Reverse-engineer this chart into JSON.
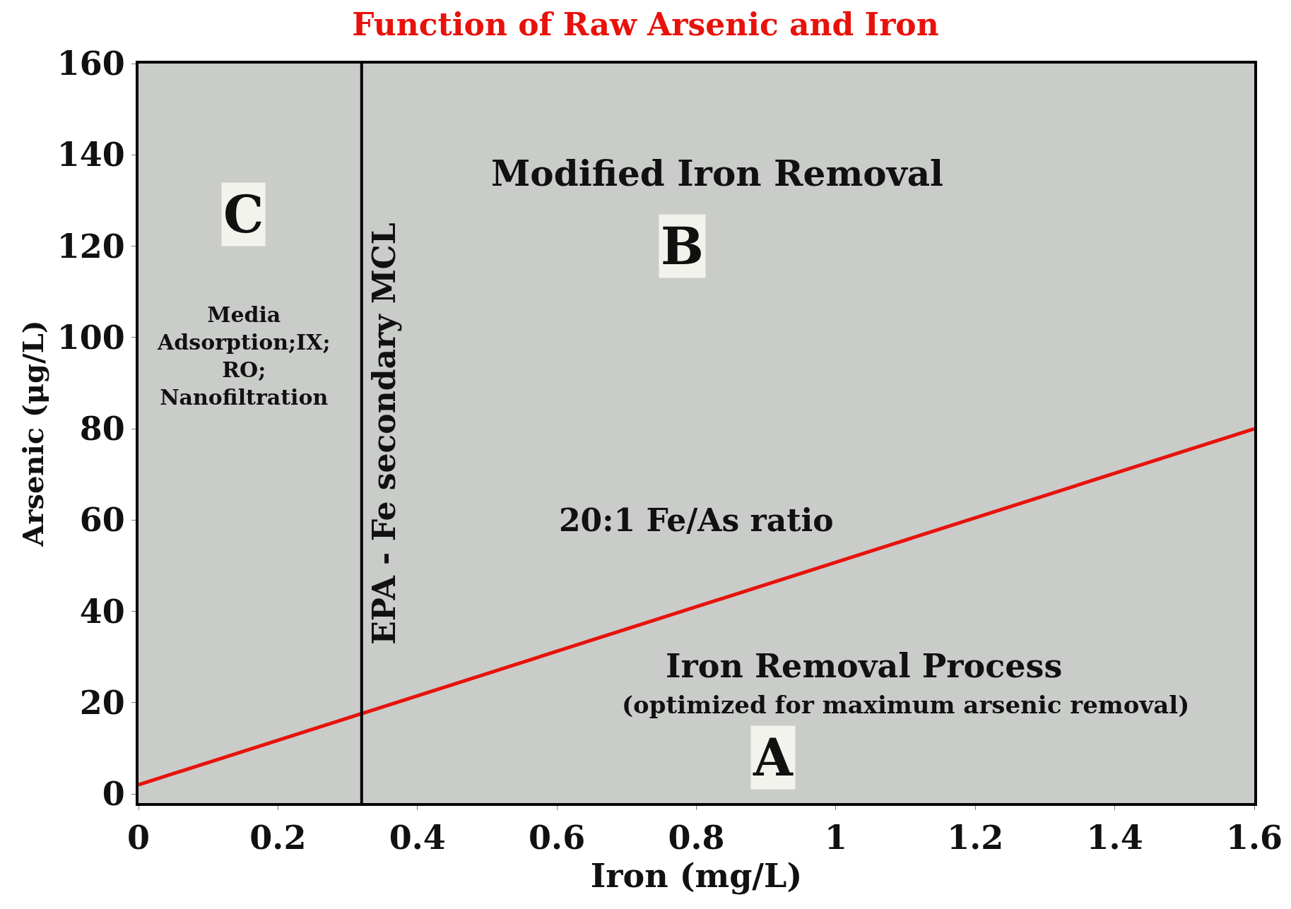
{
  "chart_data": {
    "type": "line",
    "title": "Function of Raw Arsenic and Iron",
    "xlabel": "Iron (mg/L)",
    "ylabel": "Arsenic (μg/L)",
    "x": [
      0,
      1.6
    ],
    "series": [
      {
        "color": "#e8120c",
        "values": [
          2,
          80
        ]
      }
    ],
    "xlim": [
      0,
      1.6
    ],
    "xticks": [
      0,
      0.2,
      0.4,
      0.6,
      0.8,
      1,
      1.2,
      1.4,
      1.6
    ],
    "ylim": [
      -2,
      160
    ],
    "yticks": [
      0,
      20,
      40,
      60,
      80,
      100,
      120,
      140,
      160
    ],
    "grid": false,
    "marker": "none",
    "line_style": "solid",
    "ref_lines": [
      {
        "axis": "x",
        "value": 0.32,
        "label": "EPA - Fe secondary MCL",
        "color": "#000000"
      }
    ],
    "annotations": [
      "C",
      "Media\nAdsorption;IX;\nRO;\nNanofiltration",
      "Modified Iron Removal",
      "B",
      "20:1 Fe/As ratio",
      "Iron Removal Process",
      "(optimized for maximum arsenic removal)",
      "A"
    ]
  }
}
